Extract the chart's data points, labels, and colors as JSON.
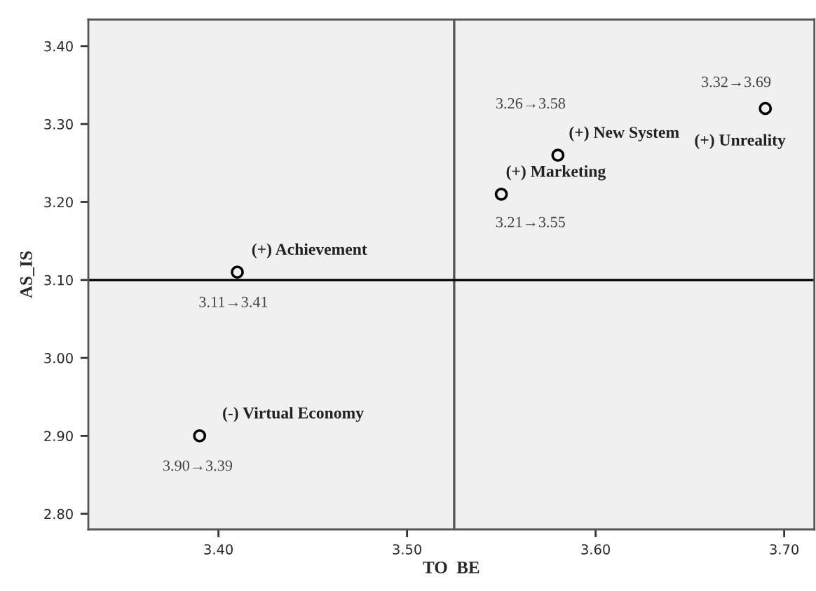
{
  "chart_data": {
    "type": "scatter",
    "xlabel": "TO  BE",
    "ylabel": "AS_IS",
    "x": [
      3.41,
      3.39,
      3.55,
      3.58,
      3.69
    ],
    "series": [
      {
        "color": "#000000",
        "values": [
          3.11,
          2.9,
          3.21,
          3.26,
          3.32
        ]
      }
    ],
    "marker": "circle",
    "grid": false,
    "legend": false,
    "xlim": [
      3.331,
      3.716
    ],
    "ylim": [
      2.78,
      3.434
    ],
    "xticks": [
      {
        "value": 3.4,
        "label": "3.40"
      },
      {
        "value": 3.5,
        "label": "3.50"
      },
      {
        "value": 3.6,
        "label": "3.60"
      },
      {
        "value": 3.7,
        "label": "3.70"
      }
    ],
    "yticks": [
      {
        "value": 2.8,
        "label": "2.80"
      },
      {
        "value": 2.9,
        "label": "2.90"
      },
      {
        "value": 3.0,
        "label": "3.00"
      },
      {
        "value": 3.1,
        "label": "3.10"
      },
      {
        "value": 3.2,
        "label": "3.20"
      },
      {
        "value": 3.3,
        "label": "3.30"
      },
      {
        "value": 3.4,
        "label": "3.40"
      }
    ],
    "ref_lines": [
      {
        "axis": "x",
        "value": 3.525,
        "color": "#555555"
      },
      {
        "axis": "y",
        "value": 3.1,
        "color": "#000000"
      }
    ],
    "annotations": [
      {
        "text": "(+) Achievement",
        "x": 3.41,
        "y": 3.11
      },
      {
        "text": "3.11→3.41",
        "x": 3.41,
        "y": 3.11
      },
      {
        "text": "(-) Virtual Economy",
        "x": 3.39,
        "y": 2.9
      },
      {
        "text": "3.90→3.39",
        "x": 3.39,
        "y": 2.9
      },
      {
        "text": "(+) Marketing",
        "x": 3.55,
        "y": 3.21
      },
      {
        "text": "3.21→3.55",
        "x": 3.55,
        "y": 3.21
      },
      {
        "text": "(+) New System",
        "x": 3.58,
        "y": 3.26
      },
      {
        "text": "3.26→3.58",
        "x": 3.58,
        "y": 3.26
      },
      {
        "text": "(+) Unreality",
        "x": 3.69,
        "y": 3.32
      },
      {
        "text": "3.32→3.69",
        "x": 3.69,
        "y": 3.32
      }
    ]
  }
}
